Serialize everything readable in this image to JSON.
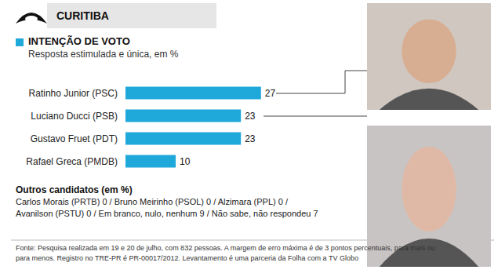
{
  "chart_data": {
    "type": "bar",
    "orientation": "horizontal",
    "title": "INTENÇÃO DE VOTO",
    "subtitle": "Resposta estimulada e única, em %",
    "categories": [
      "Ratinho Junior (PSC)",
      "Luciano Ducci (PSB)",
      "Gustavo Fruet (PDT)",
      "Rafael Greca (PMDB)"
    ],
    "values": [
      27,
      23,
      23,
      10
    ],
    "color": "#1fa8da",
    "xlim": [
      0,
      30
    ],
    "grid": false,
    "data_labels": true,
    "tick_labels": "y"
  },
  "header": "CURITIBA",
  "others": {
    "title": "Outros candidatos (em %)",
    "lines": [
      "Carlos Morais (PRTB) 0 / Bruno Meirinho (PSOL) 0 / Alzimara (PPL) 0 /",
      "Avanilson (PSTU) 0 / Em branco, nulo, nenhum 9 / Não sabe, não respondeu 7"
    ]
  },
  "source": [
    "Fonte: Pesquisa realizada em 19 e 20 de julho, com 832 pessoas. A margem de erro máxima é de 3 pontos percentuais, para mais ou",
    "para menos. Registro no TRE-PR é PR-00017/2012. Levantamento é uma parceria da Folha com a TV Globo"
  ]
}
